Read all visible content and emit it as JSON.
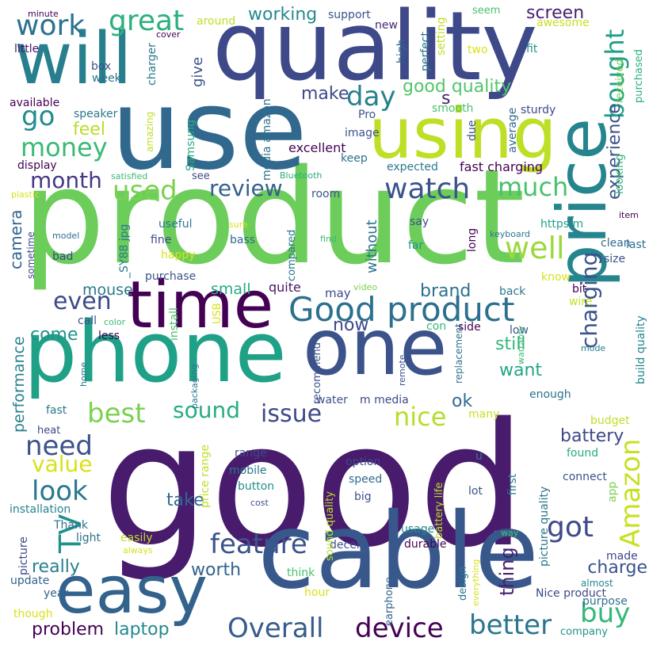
{
  "cloud": {
    "background": "#ffffff",
    "words": [
      {
        "text": "good",
        "color": "#481b6d"
      },
      {
        "text": "product",
        "color": "#6ccd5a"
      },
      {
        "text": "use",
        "color": "#31688e"
      },
      {
        "text": "quality",
        "color": "#3e4989"
      },
      {
        "text": "cable",
        "color": "#38588c"
      },
      {
        "text": "phone",
        "color": "#1fa187"
      },
      {
        "text": "one",
        "color": "#3b528b"
      },
      {
        "text": "will",
        "color": "#277f8e"
      },
      {
        "text": "using",
        "color": "#bddf26"
      },
      {
        "text": "time",
        "color": "#440154"
      },
      {
        "text": "easy",
        "color": "#33638d"
      },
      {
        "text": "price",
        "color": "#25858e"
      },
      {
        "text": "Good product",
        "color": "#2d708e"
      },
      {
        "text": "feature",
        "color": "#3a548c"
      },
      {
        "text": "Overall",
        "color": "#365c8d"
      },
      {
        "text": "device",
        "color": "#440154"
      },
      {
        "text": "got",
        "color": "#3e4a89"
      },
      {
        "text": "buy",
        "color": "#35b779"
      },
      {
        "text": "better",
        "color": "#2a768e"
      },
      {
        "text": "Amazon",
        "color": "#c8e020"
      },
      {
        "text": "TV",
        "color": "#21918c"
      },
      {
        "text": "work",
        "color": "#2c728e"
      },
      {
        "text": "great",
        "color": "#2ab07f"
      },
      {
        "text": "money",
        "color": "#3aba76"
      },
      {
        "text": "watch",
        "color": "#3b528b"
      },
      {
        "text": "well",
        "color": "#9bd93c"
      },
      {
        "text": "much",
        "color": "#4ac16d"
      },
      {
        "text": "review",
        "color": "#34618d"
      },
      {
        "text": "used",
        "color": "#7ad151"
      },
      {
        "text": "month",
        "color": "#443983"
      },
      {
        "text": "bought",
        "color": "#1fa088"
      },
      {
        "text": "day",
        "color": "#27808e"
      },
      {
        "text": "go",
        "color": "#228c8d"
      },
      {
        "text": "even",
        "color": "#3e4a89"
      },
      {
        "text": "need",
        "color": "#3b528b"
      },
      {
        "text": "look",
        "color": "#2a788e"
      },
      {
        "text": "value",
        "color": "#d8e219"
      },
      {
        "text": "best",
        "color": "#7ad151"
      },
      {
        "text": "sound",
        "color": "#26ad81"
      },
      {
        "text": "issue",
        "color": "#3e4989"
      },
      {
        "text": "nice",
        "color": "#b5de2b"
      },
      {
        "text": "charging",
        "color": "#3b528b"
      },
      {
        "text": "good quality",
        "color": "#52c569"
      },
      {
        "text": "working",
        "color": "#23898e"
      },
      {
        "text": "screen",
        "color": "#482173"
      },
      {
        "text": "make",
        "color": "#3e4a89"
      },
      {
        "text": "feel",
        "color": "#b8de29"
      },
      {
        "text": "experience",
        "color": "#3b528b"
      },
      {
        "text": "s",
        "color": "#481f70"
      },
      {
        "text": "now",
        "color": "#3e4989"
      },
      {
        "text": "brand",
        "color": "#2d718e"
      },
      {
        "text": "still",
        "color": "#35b779"
      },
      {
        "text": "want",
        "color": "#21a685"
      },
      {
        "text": "ok",
        "color": "#2f6b8e"
      },
      {
        "text": "battery",
        "color": "#3e4989"
      },
      {
        "text": "take",
        "color": "#30698e"
      },
      {
        "text": "worth",
        "color": "#33638d"
      },
      {
        "text": "charge",
        "color": "#3b528b"
      },
      {
        "text": "thing",
        "color": "#481f70"
      },
      {
        "text": "problem",
        "color": "#440154"
      },
      {
        "text": "laptop",
        "color": "#23898e"
      },
      {
        "text": "really",
        "color": "#277f8e"
      },
      {
        "text": "come",
        "color": "#20928c"
      },
      {
        "text": "performance",
        "color": "#26828e"
      },
      {
        "text": "camera",
        "color": "#33638d"
      },
      {
        "text": "mouse",
        "color": "#2a788e"
      },
      {
        "text": "small",
        "color": "#25ac82"
      },
      {
        "text": "give",
        "color": "#3b528b"
      },
      {
        "text": "without",
        "color": "#2c728e"
      },
      {
        "text": "quite",
        "color": "#481467"
      },
      {
        "text": "may",
        "color": "#3e4989"
      },
      {
        "text": "excellent",
        "color": "#440154"
      },
      {
        "text": "fast charging",
        "color": "#440154"
      },
      {
        "text": "support",
        "color": "#3b528b"
      },
      {
        "text": "setting",
        "color": "#bddf26"
      },
      {
        "text": "perfect",
        "color": "#2a768e"
      },
      {
        "text": "high",
        "color": "#33638d"
      },
      {
        "text": "new",
        "color": "#482878"
      },
      {
        "text": "two",
        "color": "#d8e219"
      },
      {
        "text": "fit",
        "color": "#21918c"
      },
      {
        "text": "seem",
        "color": "#4ac16d"
      },
      {
        "text": "awesome",
        "color": "#c8e020"
      },
      {
        "text": "purchased",
        "color": "#2ab07f"
      },
      {
        "text": "received",
        "color": "#7ad151"
      },
      {
        "text": "sturdy",
        "color": "#3e4989"
      },
      {
        "text": "average",
        "color": "#31688e"
      },
      {
        "text": "looking",
        "color": "#35b779"
      },
      {
        "text": "last",
        "color": "#2d708e"
      },
      {
        "text": "clean",
        "color": "#2f6b8e"
      },
      {
        "text": "size",
        "color": "#3b528b"
      },
      {
        "text": "item",
        "color": "#440154"
      },
      {
        "text": "keyboard",
        "color": "#2a788e"
      },
      {
        "text": "long",
        "color": "#440154"
      },
      {
        "text": "far",
        "color": "#20928c"
      },
      {
        "text": "say",
        "color": "#3b528b"
      },
      {
        "text": "https m",
        "color": "#1fa088"
      },
      {
        "text": "find",
        "color": "#3aba76"
      },
      {
        "text": "know",
        "color": "#d8e219"
      },
      {
        "text": "bit",
        "color": "#440154"
      },
      {
        "text": "wire",
        "color": "#c8e020"
      },
      {
        "text": "build quality",
        "color": "#25858e"
      },
      {
        "text": "back",
        "color": "#2a788e"
      },
      {
        "text": "low",
        "color": "#3b528b"
      },
      {
        "text": "con",
        "color": "#35b779"
      },
      {
        "text": "side",
        "color": "#440154"
      },
      {
        "text": "replacement",
        "color": "#2c728e"
      },
      {
        "text": "warranty",
        "color": "#3aba76"
      },
      {
        "text": "mode",
        "color": "#277f8e"
      },
      {
        "text": "enough",
        "color": "#2a768e"
      },
      {
        "text": "budget",
        "color": "#bddf26"
      },
      {
        "text": "found",
        "color": "#26ad81"
      },
      {
        "text": "connect",
        "color": "#3b528b"
      },
      {
        "text": "app",
        "color": "#7ad151"
      },
      {
        "text": "first",
        "color": "#2a788e"
      },
      {
        "text": "lot",
        "color": "#3b528b"
      },
      {
        "text": "u",
        "color": "#26828e"
      },
      {
        "text": "picture quality",
        "color": "#2a768e"
      },
      {
        "text": "way",
        "color": "#4ac16d"
      },
      {
        "text": "made",
        "color": "#3e4989"
      },
      {
        "text": "almost",
        "color": "#23898e"
      },
      {
        "text": "Nice product",
        "color": "#3e4989"
      },
      {
        "text": "purpose",
        "color": "#2d708e"
      },
      {
        "text": "company",
        "color": "#21918c"
      },
      {
        "text": "everything",
        "color": "#d8e219"
      },
      {
        "text": "design",
        "color": "#2a788e"
      },
      {
        "text": "durable",
        "color": "#440154"
      },
      {
        "text": "usage",
        "color": "#23898e"
      },
      {
        "text": "earphone",
        "color": "#33638d"
      },
      {
        "text": "hour",
        "color": "#d8e219"
      },
      {
        "text": "think",
        "color": "#4ac16d"
      },
      {
        "text": "decent",
        "color": "#3b528b"
      },
      {
        "text": "sound quality",
        "color": "#bddf26"
      },
      {
        "text": "battery life",
        "color": "#bddf26"
      },
      {
        "text": "big",
        "color": "#3b528b"
      },
      {
        "text": "speed",
        "color": "#2f6b8e"
      },
      {
        "text": "option",
        "color": "#3e4989"
      },
      {
        "text": "range",
        "color": "#3e4989"
      },
      {
        "text": "mobile",
        "color": "#2a788e"
      },
      {
        "text": "button",
        "color": "#21918c"
      },
      {
        "text": "cost",
        "color": "#3b528b"
      },
      {
        "text": "price range",
        "color": "#bddf26"
      },
      {
        "text": "water",
        "color": "#3b528b"
      },
      {
        "text": "m media",
        "color": "#3e4989"
      },
      {
        "text": "remote",
        "color": "#3b528b"
      },
      {
        "text": "heat",
        "color": "#3e4989"
      },
      {
        "text": "many",
        "color": "#c8e020"
      },
      {
        "text": "fast",
        "color": "#2a788e"
      },
      {
        "text": "recommend",
        "color": "#3b528b"
      },
      {
        "text": "video",
        "color": "#7ad151"
      },
      {
        "text": "less",
        "color": "#440154"
      },
      {
        "text": "install",
        "color": "#4ac16d"
      },
      {
        "text": "USB",
        "color": "#d8e219"
      },
      {
        "text": "call",
        "color": "#3b528b"
      },
      {
        "text": "color",
        "color": "#3aba76"
      },
      {
        "text": "packaging",
        "color": "#2a788e"
      },
      {
        "text": "home",
        "color": "#2a768e"
      },
      {
        "text": "installation",
        "color": "#26828e"
      },
      {
        "text": "picture",
        "color": "#3e4989"
      },
      {
        "text": "Thank",
        "color": "#2d708e"
      },
      {
        "text": "light",
        "color": "#2c728e"
      },
      {
        "text": "easily",
        "color": "#bddf26"
      },
      {
        "text": "always",
        "color": "#d8e219"
      },
      {
        "text": "update",
        "color": "#33638d"
      },
      {
        "text": "year",
        "color": "#33638d"
      },
      {
        "text": "though",
        "color": "#d8e219"
      },
      {
        "text": "compared",
        "color": "#2a788e"
      },
      {
        "text": "bass",
        "color": "#2f6b8e"
      },
      {
        "text": "fine",
        "color": "#3e4989"
      },
      {
        "text": "useful",
        "color": "#2a788e"
      },
      {
        "text": "happy",
        "color": "#d8e219"
      },
      {
        "text": "purchase",
        "color": "#3b528b"
      },
      {
        "text": "sure",
        "color": "#d8e219"
      },
      {
        "text": "_SY88 jpg",
        "color": "#2a788e"
      },
      {
        "text": "model",
        "color": "#2d708e"
      },
      {
        "text": "bad",
        "color": "#3e4989"
      },
      {
        "text": "sometime",
        "color": "#3e4989"
      },
      {
        "text": "plastic",
        "color": "#d8e219"
      },
      {
        "text": "see",
        "color": "#3e4989"
      },
      {
        "text": "room",
        "color": "#3b528b"
      },
      {
        "text": "Bluetooth",
        "color": "#26ad81"
      },
      {
        "text": "satisfied",
        "color": "#3aba76"
      },
      {
        "text": "display",
        "color": "#440154"
      },
      {
        "text": "Samsung",
        "color": "#26ad81"
      },
      {
        "text": "amazing",
        "color": "#bddf26"
      },
      {
        "text": "available",
        "color": "#440154"
      },
      {
        "text": "speaker",
        "color": "#2a788e"
      },
      {
        "text": "box",
        "color": "#3b528b"
      },
      {
        "text": "week",
        "color": "#2c728e"
      },
      {
        "text": "charger",
        "color": "#2a788e"
      },
      {
        "text": "little",
        "color": "#481467"
      },
      {
        "text": "minute",
        "color": "#440154"
      },
      {
        "text": "cover",
        "color": "#440154"
      },
      {
        "text": "around",
        "color": "#bddf26"
      },
      {
        "text": "media amazon",
        "color": "#2d708e"
      },
      {
        "text": "Pro",
        "color": "#3b528b"
      },
      {
        "text": "image",
        "color": "#3b528b"
      },
      {
        "text": "smooth",
        "color": "#4ac16d"
      },
      {
        "text": "due",
        "color": "#3b528b"
      },
      {
        "text": "keep",
        "color": "#2d708e"
      },
      {
        "text": "expected",
        "color": "#2a788e"
      }
    ]
  }
}
